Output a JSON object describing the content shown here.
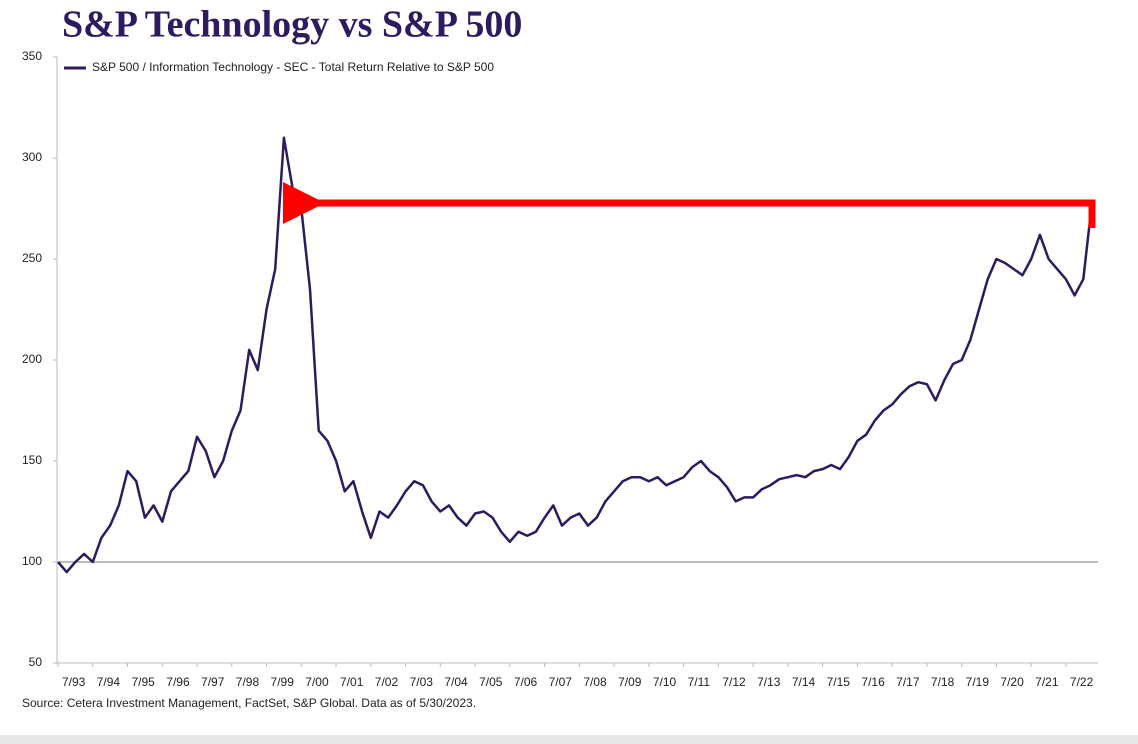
{
  "chart_data": {
    "type": "line",
    "title": "S&P Technology vs S&P 500",
    "source": "Source: Cetera Investment Management, FactSet, S&P Global. Data as of 5/30/2023.",
    "categories": [
      "7/93",
      null,
      null,
      null,
      "7/94",
      null,
      null,
      null,
      "7/95",
      null,
      null,
      null,
      "7/96",
      null,
      null,
      null,
      "7/97",
      null,
      null,
      null,
      "7/98",
      null,
      null,
      null,
      "7/99",
      null,
      null,
      null,
      "7/00",
      null,
      null,
      null,
      "7/01",
      null,
      null,
      null,
      "7/02",
      null,
      null,
      null,
      "7/03",
      null,
      null,
      null,
      "7/04",
      null,
      null,
      null,
      "7/05",
      null,
      null,
      null,
      "7/06",
      null,
      null,
      null,
      "7/07",
      null,
      null,
      null,
      "7/08",
      null,
      null,
      null,
      "7/09",
      null,
      null,
      null,
      "7/10",
      null,
      null,
      null,
      "7/11",
      null,
      null,
      null,
      "7/12",
      null,
      null,
      null,
      "7/13",
      null,
      null,
      null,
      "7/14",
      null,
      null,
      null,
      "7/15",
      null,
      null,
      null,
      "7/16",
      null,
      null,
      null,
      "7/17",
      null,
      null,
      null,
      "7/18",
      null,
      null,
      null,
      "7/19",
      null,
      null,
      null,
      "7/20",
      null,
      null,
      null,
      "7/21",
      null,
      null,
      null,
      "7/22",
      null,
      null,
      null
    ],
    "series": [
      {
        "name": "S&P 500 / Information Technology - SEC - Total Return Relative to S&P 500",
        "color": "#2e1a5e",
        "values": [
          100,
          95,
          100,
          104,
          100,
          112,
          118,
          128,
          145,
          140,
          122,
          128,
          120,
          135,
          140,
          145,
          162,
          155,
          142,
          150,
          165,
          175,
          205,
          195,
          225,
          245,
          310,
          285,
          275,
          235,
          165,
          160,
          150,
          135,
          140,
          125,
          112,
          125,
          122,
          128,
          135,
          140,
          138,
          130,
          125,
          128,
          122,
          118,
          124,
          125,
          122,
          115,
          110,
          115,
          113,
          115,
          122,
          128,
          118,
          122,
          124,
          118,
          122,
          130,
          135,
          140,
          142,
          142,
          140,
          142,
          138,
          140,
          142,
          147,
          150,
          145,
          142,
          137,
          130,
          132,
          132,
          136,
          138,
          141,
          142,
          143,
          142,
          145,
          146,
          148,
          146,
          152,
          160,
          163,
          170,
          175,
          178,
          183,
          187,
          189,
          188,
          180,
          190,
          198,
          200,
          210,
          225,
          240,
          250,
          248,
          245,
          242,
          250,
          262,
          250,
          245,
          240,
          232,
          240,
          278
        ]
      }
    ],
    "ylim": [
      50,
      350
    ],
    "yticks": [
      50,
      100,
      150,
      200,
      250,
      300,
      350
    ],
    "reference_line": 100,
    "grid": false
  }
}
